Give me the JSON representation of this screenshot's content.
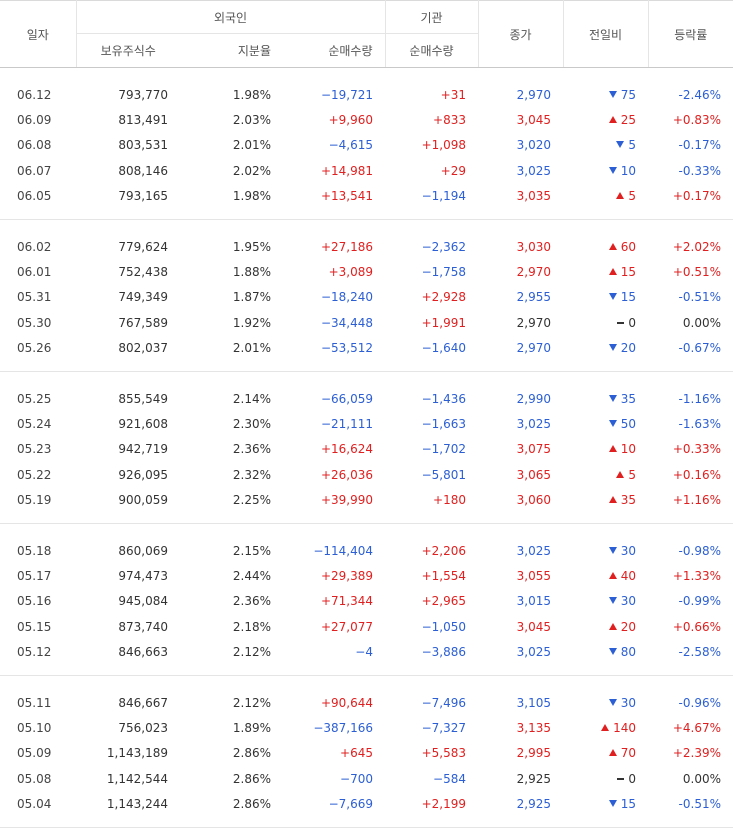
{
  "headers": {
    "date": "일자",
    "foreign": "외국인",
    "institution": "기관",
    "holdings": "보유주식수",
    "ratio": "지분율",
    "foreign_net": "순매수량",
    "inst_net": "순매수량",
    "close": "종가",
    "change": "전일비",
    "rate": "등락률"
  },
  "colors": {
    "up": "#e02020",
    "down": "#2c5fd4",
    "flat": "#333333"
  },
  "groups": [
    {
      "rows": [
        {
          "date": "06.12",
          "holdings": "793,770",
          "ratio": "1.98%",
          "foreign_net": "−19,721",
          "inst_net": "+31",
          "close": "2,970",
          "change": "75",
          "rate": "-2.46%",
          "dir": "down"
        },
        {
          "date": "06.09",
          "holdings": "813,491",
          "ratio": "2.03%",
          "foreign_net": "+9,960",
          "inst_net": "+833",
          "close": "3,045",
          "change": "25",
          "rate": "+0.83%",
          "dir": "up"
        },
        {
          "date": "06.08",
          "holdings": "803,531",
          "ratio": "2.01%",
          "foreign_net": "−4,615",
          "inst_net": "+1,098",
          "close": "3,020",
          "change": "5",
          "rate": "-0.17%",
          "dir": "down"
        },
        {
          "date": "06.07",
          "holdings": "808,146",
          "ratio": "2.02%",
          "foreign_net": "+14,981",
          "inst_net": "+29",
          "close": "3,025",
          "change": "10",
          "rate": "-0.33%",
          "dir": "down"
        },
        {
          "date": "06.05",
          "holdings": "793,165",
          "ratio": "1.98%",
          "foreign_net": "+13,541",
          "inst_net": "−1,194",
          "close": "3,035",
          "change": "5",
          "rate": "+0.17%",
          "dir": "up"
        }
      ]
    },
    {
      "rows": [
        {
          "date": "06.02",
          "holdings": "779,624",
          "ratio": "1.95%",
          "foreign_net": "+27,186",
          "inst_net": "−2,362",
          "close": "3,030",
          "change": "60",
          "rate": "+2.02%",
          "dir": "up"
        },
        {
          "date": "06.01",
          "holdings": "752,438",
          "ratio": "1.88%",
          "foreign_net": "+3,089",
          "inst_net": "−1,758",
          "close": "2,970",
          "change": "15",
          "rate": "+0.51%",
          "dir": "up"
        },
        {
          "date": "05.31",
          "holdings": "749,349",
          "ratio": "1.87%",
          "foreign_net": "−18,240",
          "inst_net": "+2,928",
          "close": "2,955",
          "change": "15",
          "rate": "-0.51%",
          "dir": "down"
        },
        {
          "date": "05.30",
          "holdings": "767,589",
          "ratio": "1.92%",
          "foreign_net": "−34,448",
          "inst_net": "+1,991",
          "close": "2,970",
          "change": "0",
          "rate": "0.00%",
          "dir": "flat"
        },
        {
          "date": "05.26",
          "holdings": "802,037",
          "ratio": "2.01%",
          "foreign_net": "−53,512",
          "inst_net": "−1,640",
          "close": "2,970",
          "change": "20",
          "rate": "-0.67%",
          "dir": "down"
        }
      ]
    },
    {
      "rows": [
        {
          "date": "05.25",
          "holdings": "855,549",
          "ratio": "2.14%",
          "foreign_net": "−66,059",
          "inst_net": "−1,436",
          "close": "2,990",
          "change": "35",
          "rate": "-1.16%",
          "dir": "down"
        },
        {
          "date": "05.24",
          "holdings": "921,608",
          "ratio": "2.30%",
          "foreign_net": "−21,111",
          "inst_net": "−1,663",
          "close": "3,025",
          "change": "50",
          "rate": "-1.63%",
          "dir": "down"
        },
        {
          "date": "05.23",
          "holdings": "942,719",
          "ratio": "2.36%",
          "foreign_net": "+16,624",
          "inst_net": "−1,702",
          "close": "3,075",
          "change": "10",
          "rate": "+0.33%",
          "dir": "up"
        },
        {
          "date": "05.22",
          "holdings": "926,095",
          "ratio": "2.32%",
          "foreign_net": "+26,036",
          "inst_net": "−5,801",
          "close": "3,065",
          "change": "5",
          "rate": "+0.16%",
          "dir": "up"
        },
        {
          "date": "05.19",
          "holdings": "900,059",
          "ratio": "2.25%",
          "foreign_net": "+39,990",
          "inst_net": "+180",
          "close": "3,060",
          "change": "35",
          "rate": "+1.16%",
          "dir": "up"
        }
      ]
    },
    {
      "rows": [
        {
          "date": "05.18",
          "holdings": "860,069",
          "ratio": "2.15%",
          "foreign_net": "−114,404",
          "inst_net": "+2,206",
          "close": "3,025",
          "change": "30",
          "rate": "-0.98%",
          "dir": "down"
        },
        {
          "date": "05.17",
          "holdings": "974,473",
          "ratio": "2.44%",
          "foreign_net": "+29,389",
          "inst_net": "+1,554",
          "close": "3,055",
          "change": "40",
          "rate": "+1.33%",
          "dir": "up"
        },
        {
          "date": "05.16",
          "holdings": "945,084",
          "ratio": "2.36%",
          "foreign_net": "+71,344",
          "inst_net": "+2,965",
          "close": "3,015",
          "change": "30",
          "rate": "-0.99%",
          "dir": "down"
        },
        {
          "date": "05.15",
          "holdings": "873,740",
          "ratio": "2.18%",
          "foreign_net": "+27,077",
          "inst_net": "−1,050",
          "close": "3,045",
          "change": "20",
          "rate": "+0.66%",
          "dir": "up"
        },
        {
          "date": "05.12",
          "holdings": "846,663",
          "ratio": "2.12%",
          "foreign_net": "−4",
          "inst_net": "−3,886",
          "close": "3,025",
          "change": "80",
          "rate": "-2.58%",
          "dir": "down"
        }
      ]
    },
    {
      "rows": [
        {
          "date": "05.11",
          "holdings": "846,667",
          "ratio": "2.12%",
          "foreign_net": "+90,644",
          "inst_net": "−7,496",
          "close": "3,105",
          "change": "30",
          "rate": "-0.96%",
          "dir": "down"
        },
        {
          "date": "05.10",
          "holdings": "756,023",
          "ratio": "1.89%",
          "foreign_net": "−387,166",
          "inst_net": "−7,327",
          "close": "3,135",
          "change": "140",
          "rate": "+4.67%",
          "dir": "up"
        },
        {
          "date": "05.09",
          "holdings": "1,143,189",
          "ratio": "2.86%",
          "foreign_net": "+645",
          "inst_net": "+5,583",
          "close": "2,995",
          "change": "70",
          "rate": "+2.39%",
          "dir": "up"
        },
        {
          "date": "05.08",
          "holdings": "1,142,544",
          "ratio": "2.86%",
          "foreign_net": "−700",
          "inst_net": "−584",
          "close": "2,925",
          "change": "0",
          "rate": "0.00%",
          "dir": "flat"
        },
        {
          "date": "05.04",
          "holdings": "1,143,244",
          "ratio": "2.86%",
          "foreign_net": "−7,669",
          "inst_net": "+2,199",
          "close": "2,925",
          "change": "15",
          "rate": "-0.51%",
          "dir": "down"
        }
      ]
    }
  ]
}
